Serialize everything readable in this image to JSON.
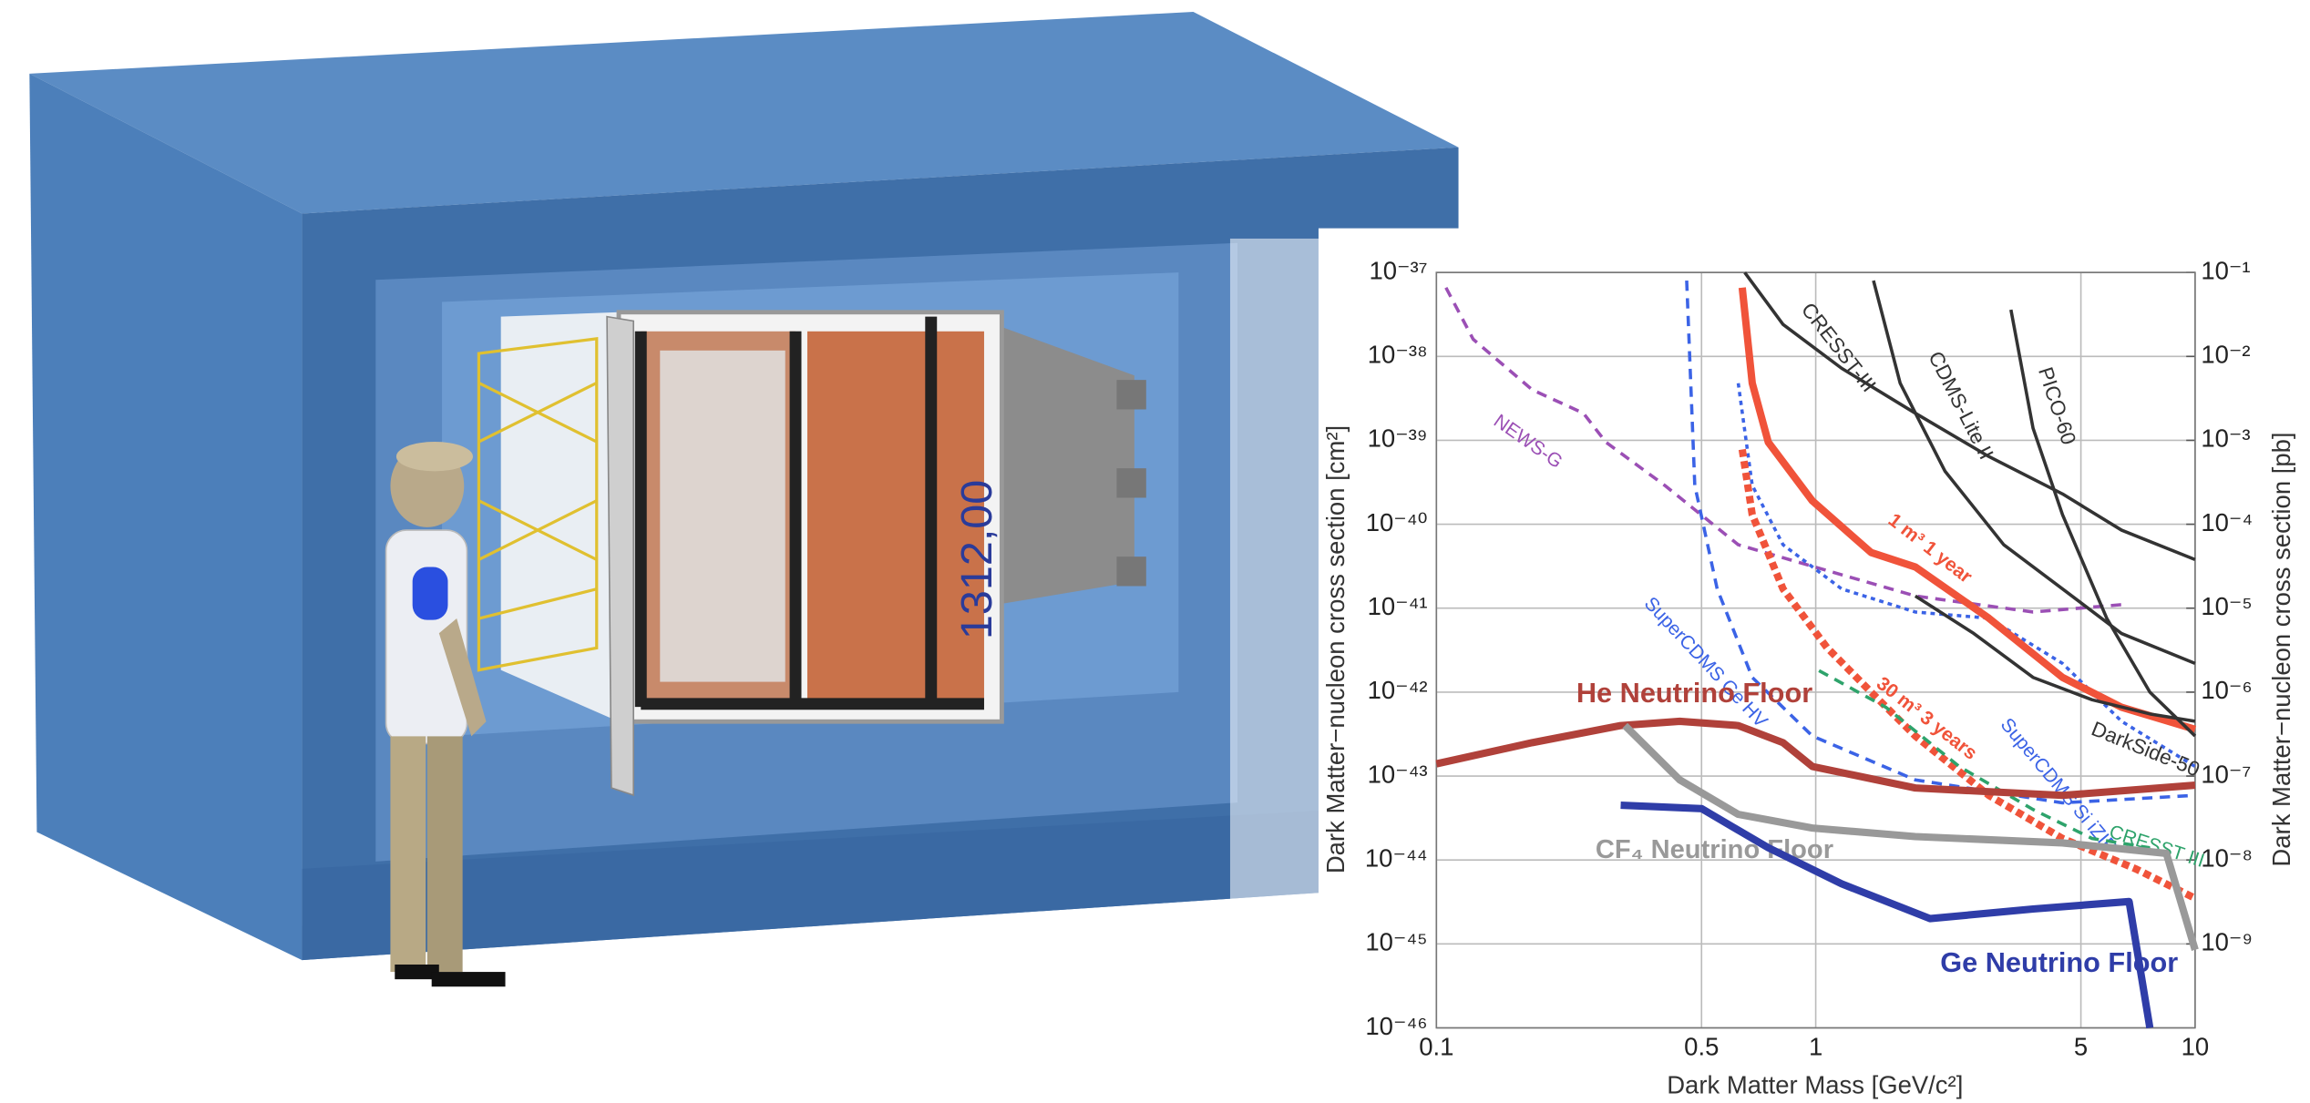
{
  "illustration": {
    "dimension_label": "1312,00"
  },
  "chart_data": {
    "type": "line",
    "xlabel": "Dark Matter Mass [GeV/c²]",
    "ylabel": "Dark Matter−nucleon cross section [cm²]",
    "y2label": "Dark Matter−nucleon cross section [pb]",
    "xscale": "log",
    "yscale": "log",
    "grid": true,
    "xlim": [
      0.1,
      10
    ],
    "xticks": [
      0.1,
      0.5,
      1,
      5,
      10
    ],
    "ylim": [
      1e-46,
      1e-37
    ],
    "yticks": [
      {
        "value": 1e-46,
        "label": "10⁻⁴⁶"
      },
      {
        "value": 1e-45,
        "label": "10⁻⁴⁵"
      },
      {
        "value": 1e-44,
        "label": "10⁻⁴⁴"
      },
      {
        "value": 1e-43,
        "label": "10⁻⁴³"
      },
      {
        "value": 1e-42,
        "label": "10⁻⁴²"
      },
      {
        "value": 1e-41,
        "label": "10⁻⁴¹"
      },
      {
        "value": 1e-40,
        "label": "10⁻⁴⁰"
      },
      {
        "value": 1e-39,
        "label": "10⁻³⁹"
      },
      {
        "value": 1e-38,
        "label": "10⁻³⁸"
      },
      {
        "value": 1e-37,
        "label": "10⁻³⁷"
      }
    ],
    "y2lim": [
      1e-10,
      0.1
    ],
    "y2ticks": [
      {
        "value": 1e-09,
        "label": "10⁻⁹"
      },
      {
        "value": 1e-08,
        "label": "10⁻⁸"
      },
      {
        "value": 1e-07,
        "label": "10⁻⁷"
      },
      {
        "value": 1e-06,
        "label": "10⁻⁶"
      },
      {
        "value": 1e-05,
        "label": "10⁻⁵"
      },
      {
        "value": 0.0001,
        "label": "10⁻⁴"
      },
      {
        "value": 0.001,
        "label": "10⁻³"
      },
      {
        "value": 0.01,
        "label": "10⁻²"
      },
      {
        "value": 0.1,
        "label": "10⁻¹"
      }
    ],
    "series": [
      {
        "name": "NEWS-G",
        "color": "#9b4fb5",
        "style": "dashed",
        "weight": "normal",
        "x": [
          0.106,
          0.125,
          0.179,
          0.244,
          0.28,
          0.4,
          0.625,
          1.17,
          1.83,
          3.74,
          6.4
        ],
        "values": [
          6.6e-38,
          1.6e-38,
          4e-39,
          2.1e-39,
          9.5e-40,
          2.9e-40,
          5.7e-41,
          2.5e-41,
          1.4e-41,
          9e-42,
          1.1e-41
        ]
      },
      {
        "name": "SuperCDMS Ge HV",
        "color": "#3b63e6",
        "style": "dashed",
        "weight": "normal",
        "x": [
          0.457,
          0.48,
          0.55,
          0.68,
          0.98,
          1.83,
          4.47,
          10
        ],
        "values": [
          8e-38,
          2.9e-40,
          1.7e-41,
          1.5e-42,
          3e-43,
          9e-44,
          4.8e-44,
          5.9e-44
        ]
      },
      {
        "name": "SuperCDMS Si iZIP",
        "color": "#3b63e6",
        "style": "dotted",
        "weight": "normal",
        "x": [
          0.625,
          0.68,
          0.82,
          1.17,
          1.83,
          2.86,
          4.47,
          6.4,
          10
        ],
        "values": [
          4.8e-39,
          2.9e-40,
          5.7e-41,
          1.7e-41,
          9e-42,
          7.6e-42,
          2.2e-42,
          4.5e-43,
          1.3e-43
        ]
      },
      {
        "name": "1 m³ 1 year",
        "color": "#f0533a",
        "style": "solid",
        "weight": "bold",
        "x": [
          0.64,
          0.68,
          0.75,
          0.98,
          1.4,
          1.83,
          2.86,
          4.47,
          6.4,
          10
        ],
        "values": [
          6.6e-38,
          4.8e-39,
          9.5e-40,
          1.9e-40,
          4.6e-41,
          3.1e-41,
          7.6e-42,
          1.5e-42,
          6.6e-43,
          3.6e-43
        ]
      },
      {
        "name": "30 m³ 3 years",
        "color": "#f0533a",
        "style": "dotted",
        "weight": "bold",
        "x": [
          0.64,
          0.68,
          0.82,
          1.07,
          1.4,
          1.83,
          2.86,
          4.47,
          7.0,
          10
        ],
        "values": [
          7.8e-40,
          1.3e-40,
          1.7e-41,
          3.4e-42,
          1e-42,
          3e-43,
          5.9e-44,
          1.8e-44,
          7.8e-45,
          3.5e-45
        ]
      },
      {
        "name": "CRESST III",
        "color": "#2ea36b",
        "style": "dashed",
        "weight": "normal",
        "x": [
          1.02,
          1.53,
          2.39,
          3.74,
          5.35,
          7.6
        ],
        "values": [
          1.8e-42,
          6.6e-43,
          1.3e-43,
          4e-44,
          1.8e-44,
          1.4e-44
        ]
      },
      {
        "name": "CRESST-III",
        "color": "#333333",
        "style": "solid",
        "weight": "normal",
        "x": [
          0.65,
          0.82,
          1.17,
          1.83,
          2.86,
          4.47,
          6.4,
          10
        ],
        "values": [
          1e-37,
          2.4e-38,
          7.2e-39,
          2.1e-39,
          6.4e-40,
          2.3e-40,
          8.5e-41,
          3.8e-41
        ]
      },
      {
        "name": "CDMS-Lite II",
        "color": "#333333",
        "style": "solid",
        "weight": "normal",
        "x": [
          1.42,
          1.67,
          2.19,
          3.13,
          4.47,
          6.4,
          10
        ],
        "values": [
          8e-38,
          4.8e-39,
          4.3e-40,
          5.7e-41,
          1.7e-41,
          5e-42,
          2.2e-42
        ]
      },
      {
        "name": "PICO-60",
        "color": "#333333",
        "style": "solid",
        "weight": "normal",
        "x": [
          3.27,
          3.74,
          4.47,
          5.85,
          7.6,
          10
        ],
        "values": [
          3.6e-38,
          1.4e-39,
          1.3e-40,
          7.6e-42,
          1e-42,
          3e-43
        ]
      },
      {
        "name": "DarkSide-50",
        "color": "#333333",
        "style": "solid",
        "weight": "normal",
        "x": [
          1.83,
          2.61,
          3.74,
          5.35,
          7.6,
          10
        ],
        "values": [
          1.4e-41,
          5e-42,
          1.5e-42,
          8.1e-43,
          5.5e-43,
          4.5e-43
        ]
      },
      {
        "name": "He Neutrino Floor",
        "color": "#b0413a",
        "style": "solid",
        "weight": "bold",
        "x": [
          0.1,
          0.179,
          0.306,
          0.438,
          0.625,
          0.82,
          0.98,
          1.83,
          4.47,
          10
        ],
        "values": [
          1.4e-43,
          2.5e-43,
          4e-43,
          4.5e-43,
          4e-43,
          2.5e-43,
          1.3e-43,
          7.2e-44,
          5.9e-44,
          7.8e-44
        ]
      },
      {
        "name": "CF₄ Neutrino Floor",
        "color": "#999999",
        "style": "solid",
        "weight": "bold",
        "x": [
          0.314,
          0.438,
          0.625,
          0.98,
          1.83,
          4.47,
          8.4,
          10
        ],
        "values": [
          4e-43,
          9e-44,
          3.5e-44,
          2.4e-44,
          1.9e-44,
          1.6e-44,
          1.2e-44,
          8.5e-46
        ]
      },
      {
        "name": "Ge Neutrino Floor",
        "color": "#2f3da8",
        "style": "solid",
        "weight": "bold",
        "x": [
          0.306,
          0.5,
          0.75,
          1.17,
          2.0,
          3.74,
          6.7,
          7.6
        ],
        "values": [
          4.5e-44,
          4.1e-44,
          1.4e-44,
          5.2e-45,
          2e-45,
          2.6e-45,
          3.2e-45,
          1e-46
        ]
      }
    ]
  }
}
